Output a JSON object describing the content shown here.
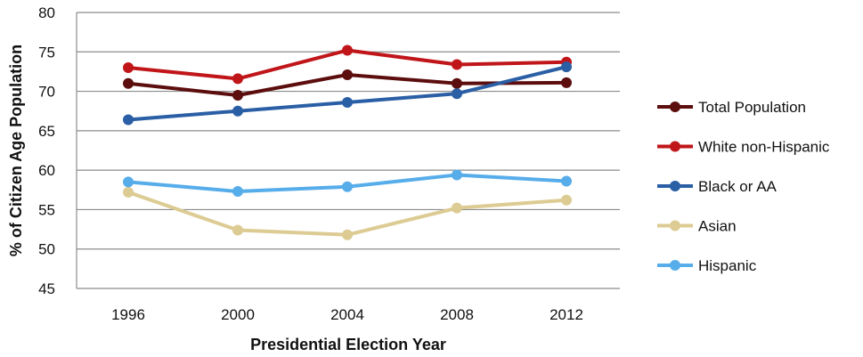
{
  "chart_data": {
    "type": "line",
    "title": "",
    "xlabel": "Presidential Election Year",
    "ylabel": "% of Citizen Age Population",
    "categories": [
      "1996",
      "2000",
      "2004",
      "2008",
      "2012"
    ],
    "ylim": [
      45,
      80
    ],
    "yticks": [
      45,
      50,
      55,
      60,
      65,
      70,
      75,
      80
    ],
    "grid": true,
    "legend_position": "right",
    "series": [
      {
        "name": "Total Population",
        "color": "#5c0d0d",
        "values": [
          71.0,
          69.5,
          72.1,
          71.0,
          71.1
        ]
      },
      {
        "name": "White non-Hispanic",
        "color": "#c0161a",
        "values": [
          73.0,
          71.6,
          75.2,
          73.4,
          73.7
        ]
      },
      {
        "name": "Black or AA",
        "color": "#2a5fa5",
        "values": [
          66.4,
          67.5,
          68.6,
          69.7,
          73.1
        ]
      },
      {
        "name": "Asian",
        "color": "#dccb93",
        "values": [
          57.2,
          52.4,
          51.8,
          55.2,
          56.2
        ]
      },
      {
        "name": "Hispanic",
        "color": "#57adea",
        "values": [
          58.5,
          57.3,
          57.9,
          59.4,
          58.6
        ]
      }
    ]
  }
}
